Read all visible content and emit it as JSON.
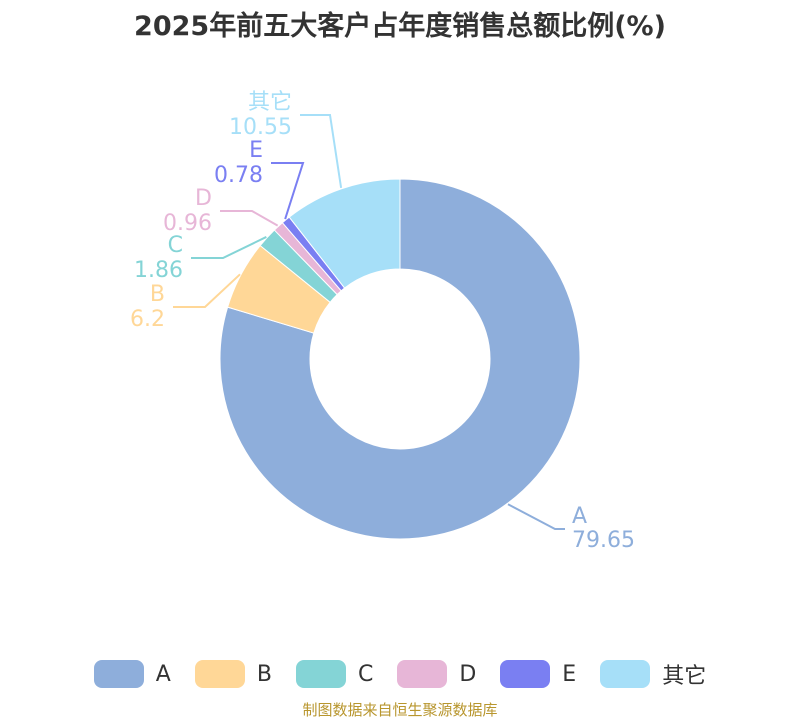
{
  "chart_data": {
    "type": "pie",
    "title": "2025年前五大客户占年度销售总额比例(%)",
    "inner_radius_ratio": 0.5,
    "slices": [
      {
        "label": "A",
        "value": 79.65,
        "color": "#8eaedb"
      },
      {
        "label": "B",
        "value": 6.2,
        "color": "#ffd797"
      },
      {
        "label": "C",
        "value": 1.86,
        "color": "#84d4d6"
      },
      {
        "label": "D",
        "value": 0.96,
        "color": "#e7b6d7"
      },
      {
        "label": "E",
        "value": 0.78,
        "color": "#7a7ff2"
      },
      {
        "label": "其它",
        "value": 10.55,
        "color": "#a6dff8"
      }
    ],
    "legend_position": "bottom"
  },
  "source": "制图数据来自恒生聚源数据库"
}
